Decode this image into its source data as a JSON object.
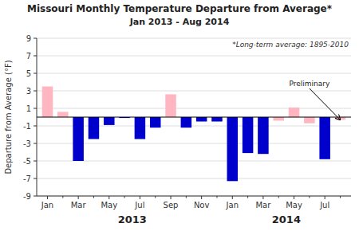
{
  "chart_data": {
    "type": "bar",
    "title": "Missouri Monthly Temperature Departure from Average*",
    "subtitle": "Jan 2013 - Aug 2014",
    "y_label": "Departure from Average (°F)",
    "annotations": [
      "*Long-term average: 1895-2010",
      "Preliminary"
    ],
    "year_labels": [
      "2013",
      "2014"
    ],
    "categories": [
      "Jan",
      null,
      "Mar",
      null,
      "May",
      null,
      "Jul",
      null,
      "Sep",
      null,
      "Nov",
      null,
      "Jan",
      null,
      "Mar",
      null,
      "May",
      null,
      "Jul",
      null
    ],
    "values": [
      3.5,
      0.6,
      -5.0,
      -2.5,
      -0.9,
      -0.1,
      -2.5,
      -1.2,
      2.6,
      -1.2,
      -0.5,
      -0.5,
      -7.3,
      -4.1,
      -4.2,
      -0.4,
      1.1,
      -0.7,
      -4.8,
      -0.3
    ],
    "colors": [
      "#FFB6C1",
      "#FFB6C1",
      "#0000CD",
      "#0000CD",
      "#0000CD",
      "#0000CD",
      "#0000CD",
      "#0000CD",
      "#FFB6C1",
      "#0000CD",
      "#0000CD",
      "#0000CD",
      "#0000CD",
      "#0000CD",
      "#0000CD",
      "#FFB6C1",
      "#FFB6C1",
      "#FFB6C1",
      "#0000CD",
      "#FFB6C1"
    ],
    "ylim": [
      -9.0,
      9.0
    ],
    "yticks": [
      -9.0,
      -7.0,
      -5.0,
      -3.0,
      -1.0,
      1.0,
      3.0,
      5.0,
      7.0,
      9.0
    ],
    "grid": true
  }
}
